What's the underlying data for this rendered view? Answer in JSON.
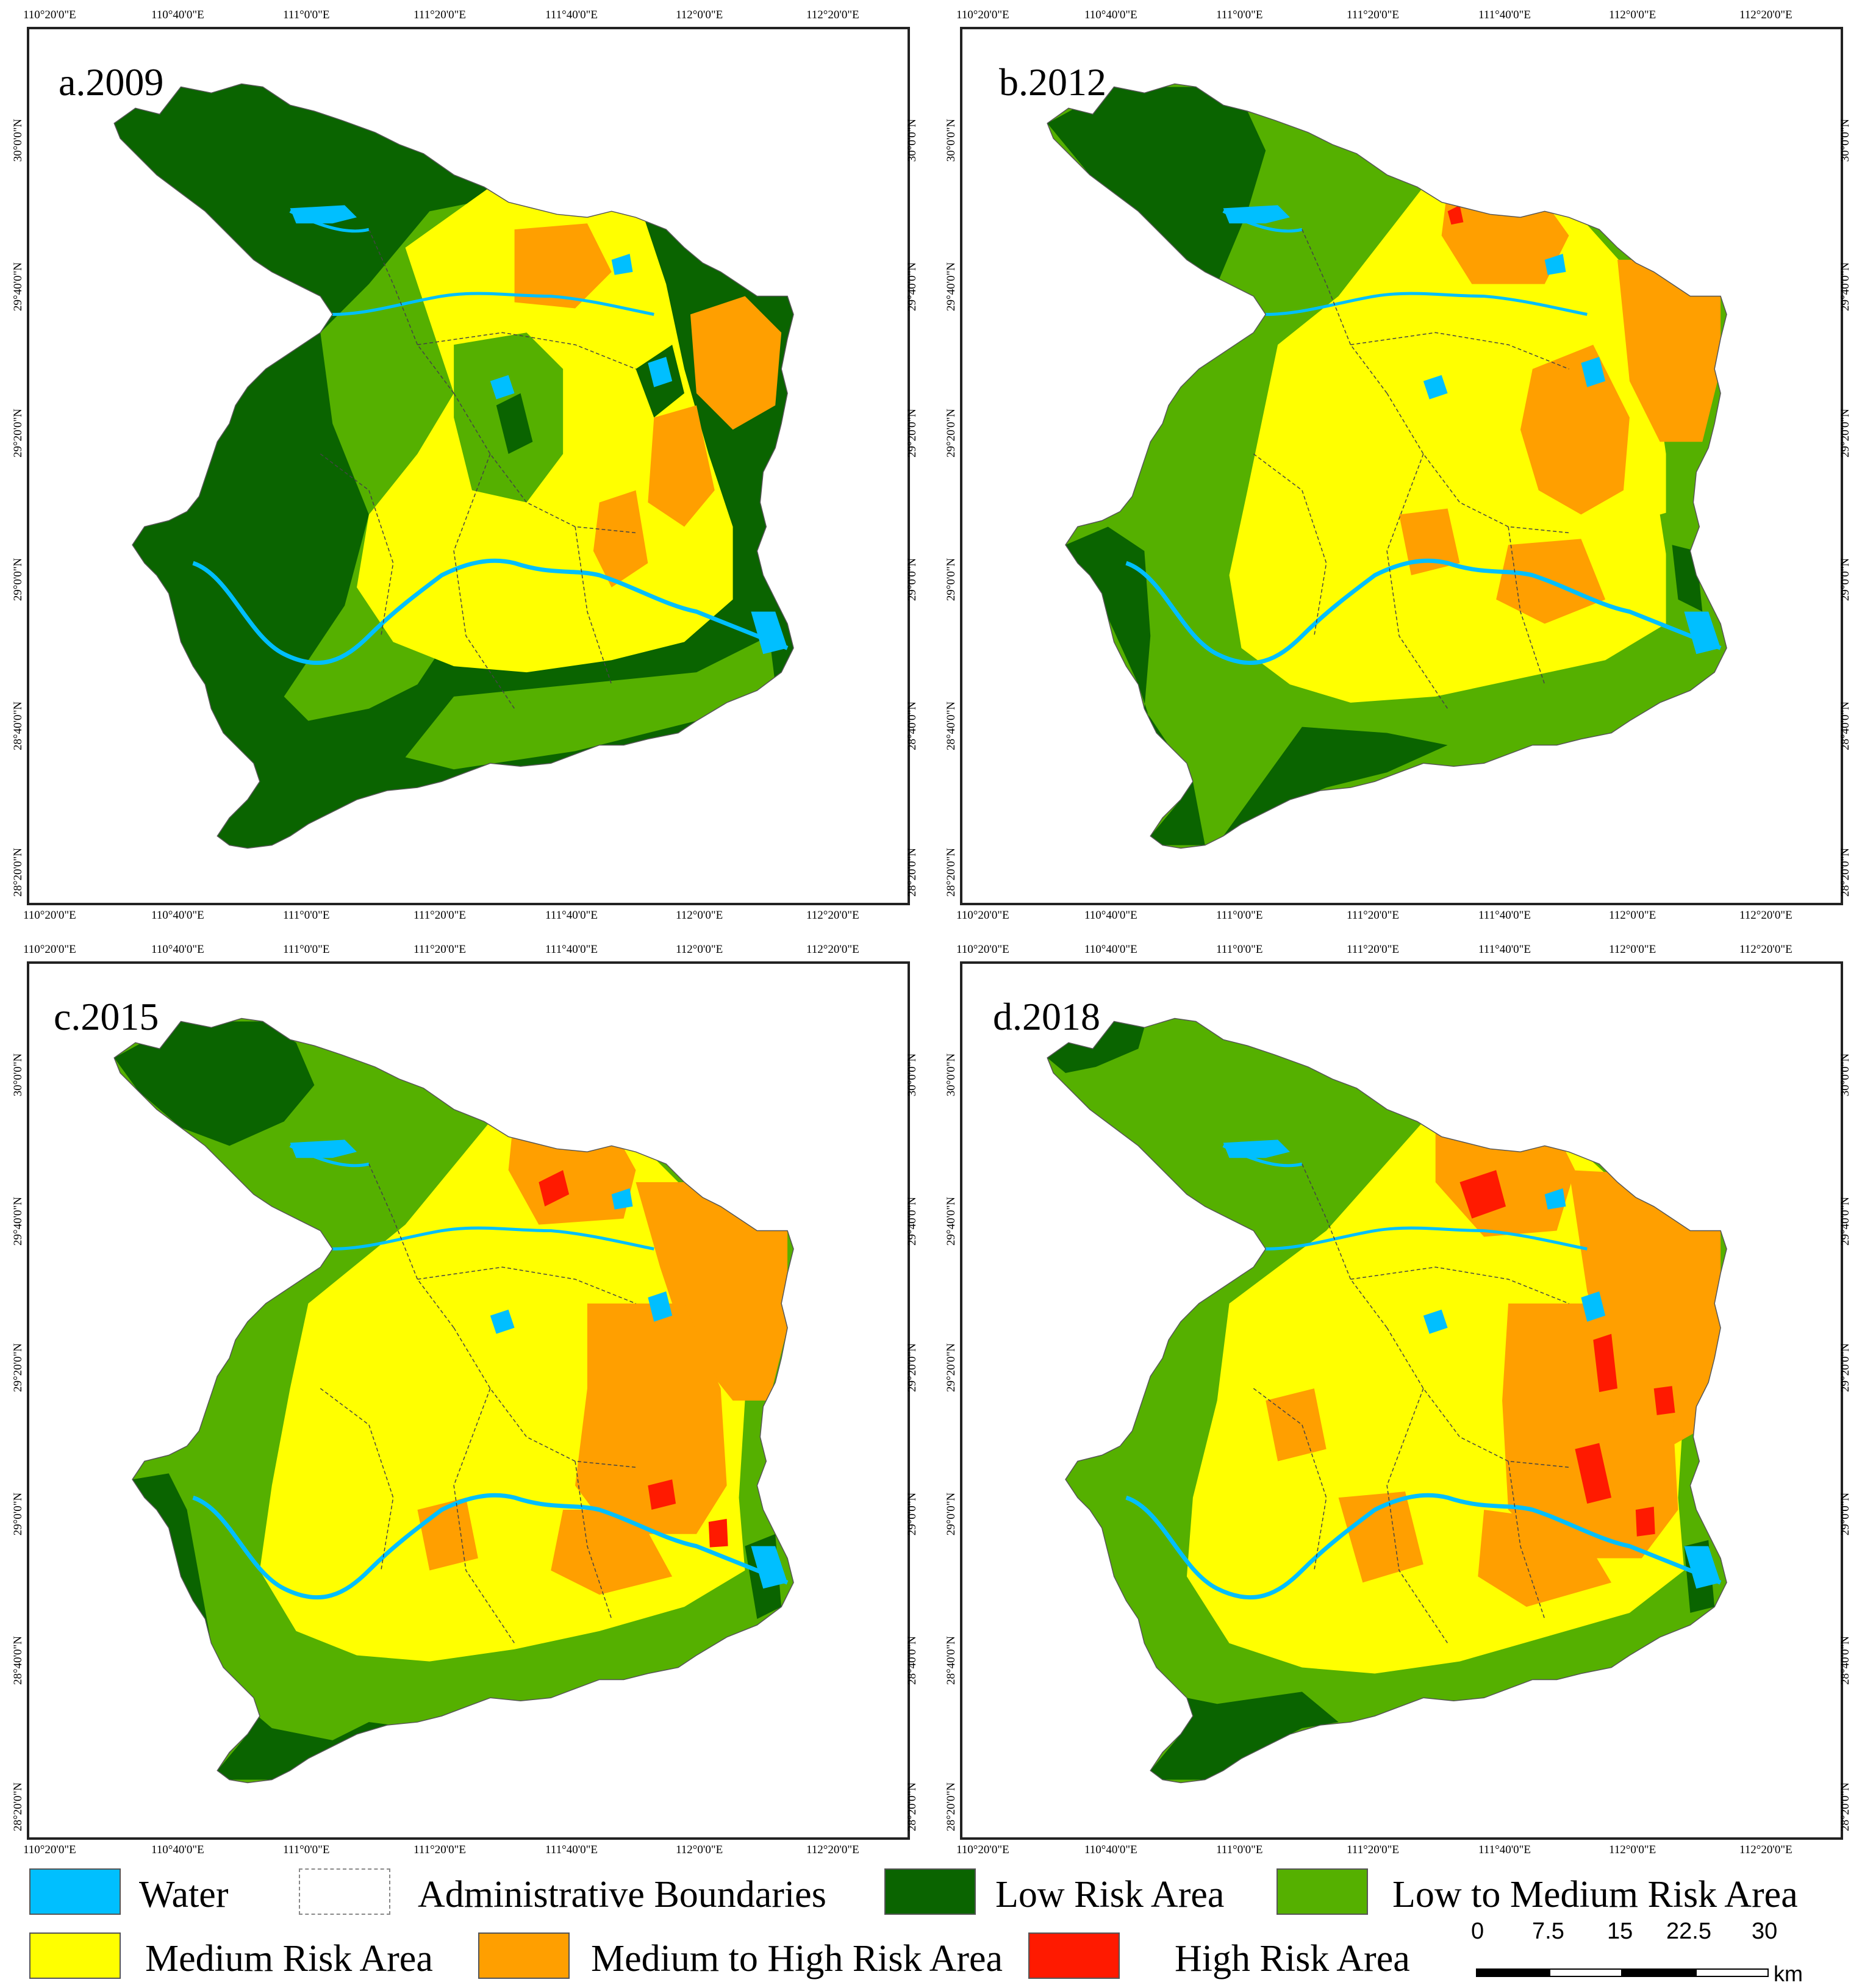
{
  "panels": [
    {
      "label": "a.2009"
    },
    {
      "label": "b.2012"
    },
    {
      "label": "c.2015"
    },
    {
      "label": "d.2018"
    }
  ],
  "axes": {
    "lon_ticks": [
      "110°20'0\"E",
      "110°40'0\"E",
      "111°0'0\"E",
      "111°20'0\"E",
      "111°40'0\"E",
      "112°0'0\"E",
      "112°20'0\"E"
    ],
    "lat_ticks": [
      "30°0'0\"N",
      "29°40'0\"N",
      "29°20'0\"N",
      "29°0'0\"N",
      "28°40'0\"N",
      "28°20'0\"N"
    ]
  },
  "legend": [
    {
      "label": "Water",
      "color": "#00bfff",
      "kind": "fill"
    },
    {
      "label": "Administrative Boundaries",
      "color": "#ffffff",
      "kind": "dashed"
    },
    {
      "label": "Low Risk Area",
      "color": "#0a6400",
      "kind": "fill"
    },
    {
      "label": "Low to Medium Risk Area",
      "color": "#55b000",
      "kind": "fill"
    },
    {
      "label": "Medium Risk Area",
      "color": "#ffff00",
      "kind": "fill"
    },
    {
      "label": "Medium to High Risk Area",
      "color": "#ff9f00",
      "kind": "fill"
    },
    {
      "label": "High Risk Area",
      "color": "#ff1a00",
      "kind": "fill"
    }
  ],
  "scale": {
    "ticks": [
      "0",
      "7.5",
      "15",
      "22.5",
      "30"
    ],
    "unit": "km"
  }
}
